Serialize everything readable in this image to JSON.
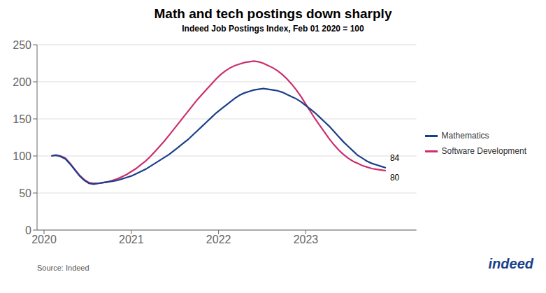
{
  "chart_data": {
    "type": "line",
    "title": "Math and tech postings down sharply",
    "subtitle": "Indeed Job Postings Index, Feb 01 2020 = 100",
    "source": "Source: Indeed",
    "credit": "indeed",
    "x": [
      2020.083,
      2020.137,
      2020.191,
      2020.245,
      2020.299,
      2020.353,
      2020.407,
      2020.461,
      2020.515,
      2020.569,
      2020.623,
      2020.677,
      2020.731,
      2020.785,
      2020.839,
      2020.893,
      2020.947,
      2021.001,
      2021.055,
      2021.109,
      2021.163,
      2021.217,
      2021.271,
      2021.325,
      2021.379,
      2021.433,
      2021.487,
      2021.541,
      2021.595,
      2021.649,
      2021.703,
      2021.757,
      2021.811,
      2021.865,
      2021.919,
      2021.973,
      2022.027,
      2022.081,
      2022.135,
      2022.189,
      2022.243,
      2022.297,
      2022.351,
      2022.405,
      2022.459,
      2022.513,
      2022.567,
      2022.621,
      2022.675,
      2022.729,
      2022.783,
      2022.837,
      2022.891,
      2022.945,
      2022.999,
      2023.053,
      2023.107,
      2023.161,
      2023.215,
      2023.269,
      2023.323,
      2023.377,
      2023.431,
      2023.485,
      2023.539,
      2023.593,
      2023.647,
      2023.701,
      2023.755,
      2023.809,
      2023.863,
      2023.917
    ],
    "series": [
      {
        "name": "Mathematics",
        "color": "#1b3f8b",
        "values": [
          100,
          101,
          99,
          96,
          89,
          81,
          73,
          67,
          63,
          62,
          63,
          64,
          65,
          66,
          67,
          69,
          71,
          73,
          76,
          79,
          82,
          86,
          90,
          94,
          98,
          102,
          107,
          112,
          117,
          122,
          128,
          134,
          140,
          146,
          152,
          158,
          163,
          168,
          173,
          178,
          182,
          185,
          187,
          189,
          190,
          191,
          190,
          189,
          188,
          186,
          183,
          180,
          177,
          173,
          168,
          163,
          158,
          152,
          146,
          140,
          133,
          126,
          119,
          113,
          107,
          101,
          97,
          93,
          90,
          88,
          86,
          84
        ]
      },
      {
        "name": "Software Development",
        "color": "#cc2f6e",
        "values": [
          100,
          101,
          100,
          97,
          90,
          82,
          74,
          68,
          64,
          63,
          63,
          64,
          65,
          67,
          69,
          72,
          75,
          79,
          83,
          88,
          93,
          99,
          106,
          113,
          120,
          128,
          136,
          144,
          152,
          160,
          168,
          176,
          183,
          190,
          197,
          204,
          210,
          215,
          219,
          222,
          224,
          226,
          227,
          228,
          227,
          225,
          222,
          219,
          215,
          210,
          204,
          197,
          189,
          180,
          170,
          160,
          150,
          141,
          132,
          123,
          115,
          108,
          102,
          97,
          93,
          90,
          87,
          85,
          83,
          82,
          81,
          80
        ]
      }
    ],
    "xlim": [
      2019.92,
      2024.267
    ],
    "xticks": [
      2020,
      2021,
      2022,
      2023
    ],
    "ylim": [
      0,
      250
    ],
    "yticks": [
      0,
      50,
      100,
      150,
      200,
      250
    ],
    "grid": true,
    "legend": "right",
    "annotations": [
      {
        "text": "84",
        "series": "Mathematics"
      },
      {
        "text": "80",
        "series": "Software Development"
      }
    ]
  }
}
